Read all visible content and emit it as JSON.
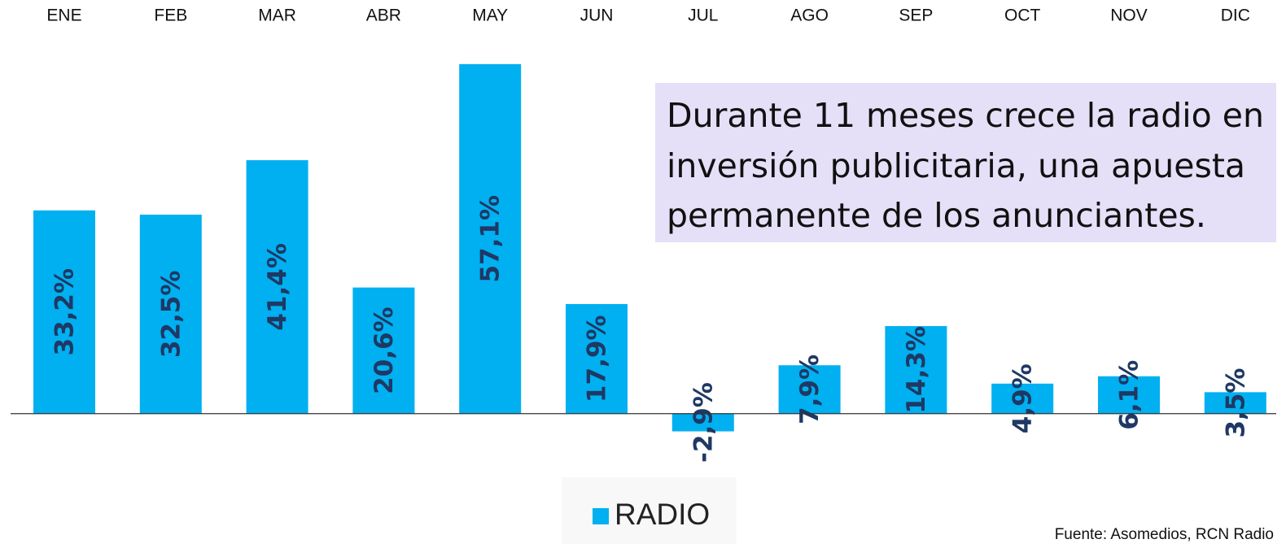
{
  "chart_data": {
    "type": "bar",
    "categories": [
      "ENE",
      "FEB",
      "MAR",
      "ABR",
      "MAY",
      "JUN",
      "JUL",
      "AGO",
      "SEP",
      "OCT",
      "NOV",
      "DIC"
    ],
    "series": [
      {
        "name": "RADIO",
        "color": "#00b0f0",
        "values": [
          33.2,
          32.5,
          41.4,
          20.6,
          57.1,
          17.9,
          -2.9,
          7.9,
          14.3,
          4.9,
          6.1,
          3.5
        ],
        "value_labels": [
          "33,2%",
          "32,5%",
          "41,4%",
          "20,6%",
          "57,1%",
          "17,9%",
          "-2,9%",
          "7,9%",
          "14,3%",
          "4,9%",
          "6,1%",
          "3,5%"
        ]
      }
    ],
    "ylim": [
      -10,
      60
    ],
    "annotation": [
      "Durante 11 meses crece la radio en",
      "inversión publicitaria, una apuesta",
      "permanente de los anunciantes."
    ],
    "source": "Fuente: Asomedios, RCN Radio"
  }
}
